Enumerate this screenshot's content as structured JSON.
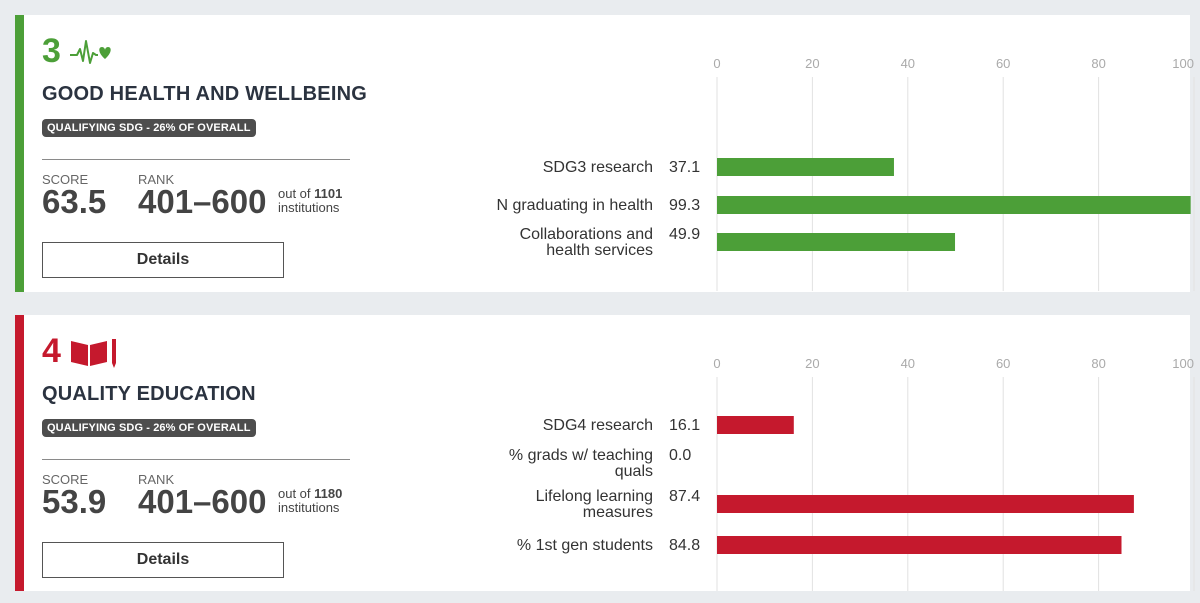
{
  "colors": {
    "sdg3": "#4c9f38",
    "sdg4": "#c5192d",
    "grid": "#e2e2e2",
    "badge_bg": "#4d4d4d"
  },
  "cards": [
    {
      "number": "3",
      "icon": "heartbeat-icon",
      "title": "GOOD HEALTH AND WELLBEING",
      "badge": "QUALIFYING SDG - 26% OF OVERALL",
      "score_label": "SCORE",
      "score": "63.5",
      "rank_label": "RANK",
      "rank": "401–600",
      "out_of_prefix": "out of",
      "out_of_total": "1101",
      "out_of_suffix": "institutions",
      "details_label": "Details"
    },
    {
      "number": "4",
      "icon": "book-pencil-icon",
      "title": "QUALITY EDUCATION",
      "badge": "QUALIFYING SDG - 26% OF OVERALL",
      "score_label": "SCORE",
      "score": "53.9",
      "rank_label": "RANK",
      "rank": "401–600",
      "out_of_prefix": "out of",
      "out_of_total": "1180",
      "out_of_suffix": "institutions",
      "details_label": "Details"
    }
  ],
  "chart_data": [
    {
      "type": "bar",
      "orientation": "horizontal",
      "xlim": [
        0,
        100
      ],
      "ticks": [
        0,
        20,
        40,
        60,
        80,
        100
      ],
      "grid": true,
      "categories": [
        [
          "SDG3 research"
        ],
        [
          "N graduating in health"
        ],
        [
          "Collaborations and",
          "health services"
        ]
      ],
      "values": [
        37.1,
        99.3,
        49.9
      ],
      "value_labels": [
        "37.1",
        "99.3",
        "49.9"
      ],
      "color": "#4c9f38"
    },
    {
      "type": "bar",
      "orientation": "horizontal",
      "xlim": [
        0,
        100
      ],
      "ticks": [
        0,
        20,
        40,
        60,
        80,
        100
      ],
      "grid": true,
      "categories": [
        [
          "SDG4 research"
        ],
        [
          "% grads w/ teaching",
          "quals"
        ],
        [
          "Lifelong learning",
          "measures"
        ],
        [
          "% 1st gen students"
        ]
      ],
      "values": [
        16.1,
        0.0,
        87.4,
        84.8
      ],
      "value_labels": [
        "16.1",
        "0.0",
        "87.4",
        "84.8"
      ],
      "color": "#c5192d"
    }
  ]
}
